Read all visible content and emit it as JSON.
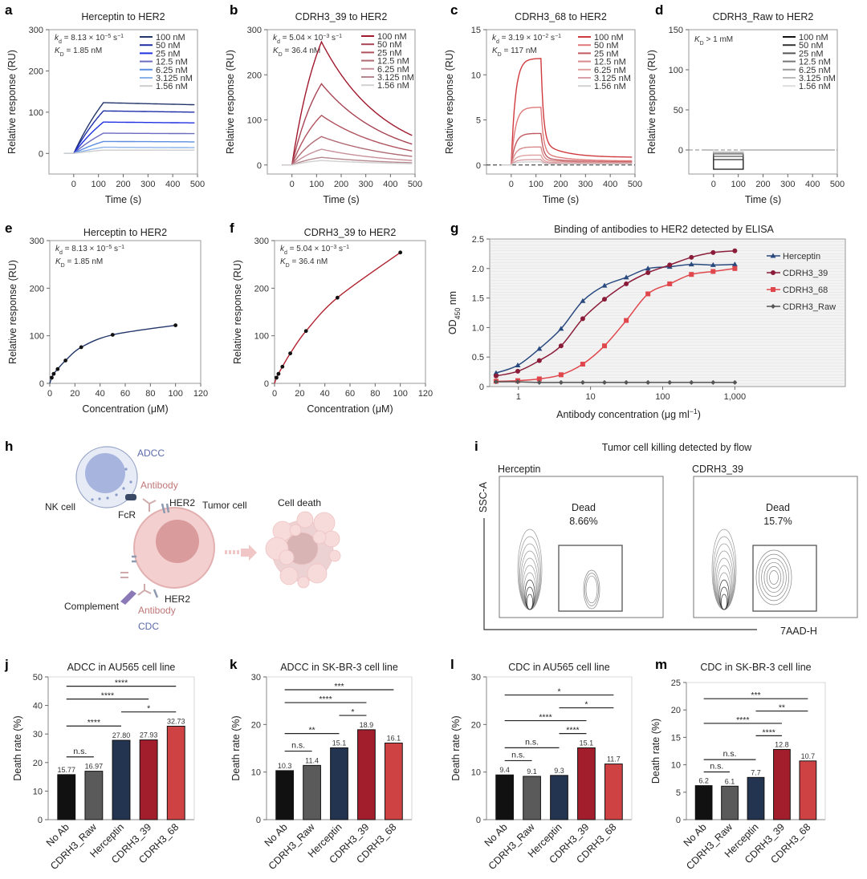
{
  "panel_labels": [
    "a",
    "b",
    "c",
    "d",
    "e",
    "f",
    "g",
    "h",
    "i",
    "j",
    "k",
    "l",
    "m"
  ],
  "chart_data": [
    {
      "panel": "a",
      "type": "line",
      "title": "Herceptin to HER2",
      "xlabel": "Time (s)",
      "ylabel": "Relative response (RU)",
      "xlim": [
        -100,
        500
      ],
      "ylim": [
        -50,
        300
      ],
      "xticks": [
        0,
        100,
        200,
        300,
        400,
        500
      ],
      "yticks": [
        0,
        100,
        200,
        300
      ],
      "injection_end_s": 120,
      "annotation": [
        [
          [
            "k",
            "i"
          ],
          [
            "d",
            "sub"
          ],
          [
            " = 8.13 × 10",
            ""
          ],
          [
            "−5",
            "sup"
          ],
          [
            " s",
            ""
          ],
          [
            "−1",
            "sup"
          ]
        ],
        [
          [
            "K",
            "i"
          ],
          [
            "D",
            "sub"
          ],
          [
            " = 1.85 nM",
            ""
          ]
        ]
      ],
      "series": [
        {
          "name": "100 nM",
          "color": "#22366a",
          "association_end": 123,
          "final": 118
        },
        {
          "name": "50 nM",
          "color": "#1f2fa8",
          "association_end": 103,
          "final": 100
        },
        {
          "name": "25 nM",
          "color": "#2130e0",
          "association_end": 76,
          "final": 74
        },
        {
          "name": "12.5 nM",
          "color": "#6b6bc0",
          "association_end": 49,
          "final": 48
        },
        {
          "name": "6.25 nM",
          "color": "#5b8de0",
          "association_end": 29,
          "final": 28
        },
        {
          "name": "3.125 nM",
          "color": "#8ab3ec",
          "association_end": 15,
          "final": 14
        },
        {
          "name": "1.56 nM",
          "color": "#cccccc",
          "association_end": 8,
          "final": 8
        }
      ]
    },
    {
      "panel": "b",
      "type": "line",
      "title": "CDRH3_39 to HER2",
      "xlabel": "Time (s)",
      "ylabel": "Relative response (RU)",
      "xlim": [
        -100,
        500
      ],
      "ylim": [
        -20,
        300
      ],
      "xticks": [
        0,
        100,
        200,
        300,
        400,
        500
      ],
      "yticks": [
        0,
        100,
        200,
        300
      ],
      "injection_end_s": 120,
      "annotation": [
        [
          [
            "k",
            "i"
          ],
          [
            "d",
            "sub"
          ],
          [
            " = 5.04 × 10",
            ""
          ],
          [
            "−3",
            "sup"
          ],
          [
            " s",
            ""
          ],
          [
            "−1",
            "sup"
          ]
        ],
        [
          [
            "K",
            "i"
          ],
          [
            "D",
            "sub"
          ],
          [
            " = 36.4 nM",
            ""
          ]
        ]
      ],
      "series": [
        {
          "name": "100 nM",
          "color": "#a0192d",
          "association_end": 273,
          "final": 65
        },
        {
          "name": "50 nM",
          "color": "#a84555",
          "association_end": 180,
          "final": 46
        },
        {
          "name": "25 nM",
          "color": "#b0525e",
          "association_end": 110,
          "final": 31
        },
        {
          "name": "12.5 nM",
          "color": "#b06a74",
          "association_end": 63,
          "final": 19
        },
        {
          "name": "6.25 nM",
          "color": "#c8909a",
          "association_end": 35,
          "final": 10
        },
        {
          "name": "3.125 nM",
          "color": "#b58890",
          "association_end": 17,
          "final": 5
        },
        {
          "name": "1.56 nM",
          "color": "#d0d0d0",
          "association_end": 10,
          "final": 3
        }
      ]
    },
    {
      "panel": "c",
      "type": "line",
      "title": "CDRH3_68 to HER2",
      "xlabel": "Time (s)",
      "ylabel": "Relative response (RU)",
      "xlim": [
        -100,
        500
      ],
      "ylim": [
        -1,
        15
      ],
      "xticks": [
        0,
        100,
        200,
        300,
        400,
        500
      ],
      "yticks": [
        0,
        5,
        10,
        15
      ],
      "injection_end_s": 120,
      "annotation": [
        [
          [
            "k",
            "i"
          ],
          [
            "d",
            "sub"
          ],
          [
            " = 3.19 × 10",
            ""
          ],
          [
            "−2",
            "sup"
          ],
          [
            " s",
            ""
          ],
          [
            "−1",
            "sup"
          ]
        ],
        [
          [
            "K",
            "i"
          ],
          [
            "D",
            "sub"
          ],
          [
            " = 117 nM",
            ""
          ]
        ]
      ],
      "series": [
        {
          "name": "100 nM",
          "color": "#d03a3f",
          "association_end": 11.8,
          "final": 0.85
        },
        {
          "name": "50 nM",
          "color": "#e07a7a",
          "association_end": 6.4,
          "final": 0.45
        },
        {
          "name": "25 nM",
          "color": "#c05a60",
          "association_end": 3.5,
          "final": 0.35
        },
        {
          "name": "12.5 nM",
          "color": "#d88a8a",
          "association_end": 2.0,
          "final": 0.3
        },
        {
          "name": "6.25 nM",
          "color": "#e0a0a0",
          "association_end": 1.1,
          "final": 0.2
        },
        {
          "name": "3.125 nM",
          "color": "#d8a0a8",
          "association_end": 0.6,
          "final": 0.15
        },
        {
          "name": "1.56 nM",
          "color": "#d0d0d0",
          "association_end": 0.35,
          "final": 0.1
        }
      ]
    },
    {
      "panel": "d",
      "type": "line",
      "title": "CDRH3_Raw to HER2",
      "xlabel": "Time (s)",
      "ylabel": "Relative response (RU)",
      "xlim": [
        -100,
        500
      ],
      "ylim": [
        -30,
        150
      ],
      "xticks": [
        0,
        100,
        200,
        300,
        400,
        500
      ],
      "yticks": [
        0,
        50,
        100,
        150
      ],
      "injection_end_s": 120,
      "annotation": [
        [
          [
            "K",
            "i"
          ],
          [
            "D",
            "sub"
          ],
          [
            " > 1 mM",
            ""
          ]
        ]
      ],
      "series": [
        {
          "name": "100 nM",
          "color": "#111111",
          "association_end": -24,
          "final": 0
        },
        {
          "name": "50 nM",
          "color": "#333333",
          "association_end": -12,
          "final": 0
        },
        {
          "name": "25 nM",
          "color": "#555555",
          "association_end": -8,
          "final": 0
        },
        {
          "name": "12.5 nM",
          "color": "#777777",
          "association_end": -5,
          "final": 0
        },
        {
          "name": "6.25 nM",
          "color": "#999999",
          "association_end": -4,
          "final": 0
        },
        {
          "name": "3.125 nM",
          "color": "#bbbbbb",
          "association_end": -3,
          "final": 0
        },
        {
          "name": "1.56 nM",
          "color": "#dddddd",
          "association_end": -2,
          "final": 0
        }
      ]
    },
    {
      "panel": "e",
      "type": "scatter",
      "title": "Herceptin to HER2",
      "xlabel": "Concentration (μM)",
      "ylabel": "Relative response (RU)",
      "xlim": [
        0,
        120
      ],
      "ylim": [
        0,
        300
      ],
      "xticks": [
        0,
        20,
        40,
        60,
        80,
        100,
        120
      ],
      "yticks": [
        0,
        100,
        200,
        300
      ],
      "annotation": [
        [
          [
            "k",
            "i"
          ],
          [
            "d",
            "sub"
          ],
          [
            " = 8.13 × 10",
            ""
          ],
          [
            "−5",
            "sup"
          ],
          [
            " s",
            ""
          ],
          [
            "−1",
            "sup"
          ]
        ],
        [
          [
            "K",
            "i"
          ],
          [
            "D",
            "sub"
          ],
          [
            " = 1.85 nM",
            ""
          ]
        ]
      ],
      "x": [
        1.56,
        3.125,
        6.25,
        12.5,
        25,
        50,
        100
      ],
      "y": [
        12,
        20,
        30,
        48,
        76,
        102,
        122
      ],
      "color": "#22366a"
    },
    {
      "panel": "f",
      "type": "scatter",
      "title": "CDRH3_39 to HER2",
      "xlabel": "Concentration (μM)",
      "ylabel": "Relative response (RU)",
      "xlim": [
        0,
        120
      ],
      "ylim": [
        0,
        300
      ],
      "xticks": [
        0,
        20,
        40,
        60,
        80,
        100,
        120
      ],
      "yticks": [
        0,
        100,
        200,
        300
      ],
      "annotation": [
        [
          [
            "k",
            "i"
          ],
          [
            "d",
            "sub"
          ],
          [
            " = 5.04 × 10",
            ""
          ],
          [
            "−3",
            "sup"
          ],
          [
            " s",
            ""
          ],
          [
            "−1",
            "sup"
          ]
        ],
        [
          [
            "K",
            "i"
          ],
          [
            "D",
            "sub"
          ],
          [
            " = 36.4 nM",
            ""
          ]
        ]
      ],
      "x": [
        1.56,
        3.125,
        6.25,
        12.5,
        25,
        50,
        100
      ],
      "y": [
        12,
        20,
        35,
        63,
        110,
        180,
        275
      ],
      "color": "#b0202e"
    },
    {
      "panel": "g",
      "type": "line",
      "title": "Binding of antibodies to HER2 detected by ELISA",
      "xlabel": [
        [
          "Antibody concentration (μg ml",
          ""
        ],
        [
          "−1",
          "sup"
        ],
        [
          ")",
          ""
        ]
      ],
      "ylabel": [
        [
          "OD",
          ""
        ],
        [
          "450",
          "sub"
        ],
        [
          " nm",
          ""
        ]
      ],
      "xscale": "log",
      "xlim": [
        0.4,
        34000
      ],
      "ylim": [
        0,
        2.5
      ],
      "xticks": [
        1,
        10,
        100,
        1000
      ],
      "xtick_labels": [
        "1",
        "10",
        "100",
        "1,000"
      ],
      "yticks": [
        0,
        0.5,
        1,
        1.5,
        2,
        2.5
      ],
      "ytick_labels": [
        "0",
        "0.5",
        "1.0",
        "1.5",
        "2.0",
        "2.5"
      ],
      "grid": true,
      "legend": "right",
      "x": [
        0.49,
        0.98,
        1.95,
        3.9,
        7.8,
        15.6,
        31.25,
        62.5,
        125,
        250,
        500,
        1000
      ],
      "series": [
        {
          "name": "Herceptin",
          "color": "#2a4a7f",
          "marker": "triangle",
          "values": [
            0.23,
            0.36,
            0.64,
            0.98,
            1.45,
            1.71,
            1.85,
            2.0,
            2.03,
            2.07,
            2.06,
            2.07
          ]
        },
        {
          "name": "CDRH3_39",
          "color": "#8a1c3a",
          "marker": "circle",
          "values": [
            0.18,
            0.26,
            0.44,
            0.69,
            1.15,
            1.48,
            1.74,
            1.93,
            2.06,
            2.19,
            2.27,
            2.3
          ]
        },
        {
          "name": "CDRH3_68",
          "color": "#e0474c",
          "marker": "square",
          "values": [
            0.09,
            0.1,
            0.13,
            0.2,
            0.38,
            0.69,
            1.12,
            1.57,
            1.74,
            1.9,
            1.95,
            2.0
          ]
        },
        {
          "name": "CDRH3_Raw",
          "color": "#555555",
          "marker": "diamond",
          "values": [
            0.08,
            0.08,
            0.07,
            0.07,
            0.07,
            0.07,
            0.07,
            0.07,
            0.07,
            0.07,
            0.07,
            0.07
          ]
        }
      ]
    },
    {
      "panel": "j",
      "type": "bar",
      "title": "ADCC in AU565 cell line",
      "ylabel": "Death rate (%)",
      "categories": [
        "No Ab",
        "CDRH3_Raw",
        "Herceptin",
        "CDRH3_39",
        "CDRH3_68"
      ],
      "values": [
        15.77,
        16.97,
        27.8,
        27.93,
        32.73
      ],
      "value_labels": [
        "15.77",
        "16.97",
        "27.80",
        "27.93",
        "32.73"
      ],
      "colors": [
        "#111111",
        "#5a5a5a",
        "#22344f",
        "#a31e2c",
        "#cf4244"
      ],
      "ylim": [
        0,
        50
      ],
      "yticks": [
        0,
        10,
        20,
        30,
        40,
        50
      ],
      "significance": [
        {
          "from": 0,
          "to": 1,
          "label": "n.s."
        },
        {
          "from": 0,
          "to": 2,
          "label": "****"
        },
        {
          "from": 2,
          "to": 4,
          "label": "*"
        },
        {
          "from": 0,
          "to": 3,
          "label": "****"
        },
        {
          "from": 0,
          "to": 4,
          "label": "****"
        }
      ]
    },
    {
      "panel": "k",
      "type": "bar",
      "title": "ADCC in SK-BR-3 cell line",
      "ylabel": "Death rate (%)",
      "categories": [
        "No Ab",
        "CDRH3_Raw",
        "Herceptin",
        "CDRH3_39",
        "CDRH3_68"
      ],
      "values": [
        10.3,
        11.4,
        15.1,
        18.9,
        16.1
      ],
      "value_labels": [
        "10.3",
        "11.4",
        "15.1",
        "18.9",
        "16.1"
      ],
      "colors": [
        "#111111",
        "#5a5a5a",
        "#22344f",
        "#a31e2c",
        "#cf4244"
      ],
      "ylim": [
        0,
        30
      ],
      "yticks": [
        0,
        10,
        20,
        30
      ],
      "significance": [
        {
          "from": 0,
          "to": 1,
          "label": "n.s."
        },
        {
          "from": 0,
          "to": 2,
          "label": "**"
        },
        {
          "from": 2,
          "to": 3,
          "label": "*"
        },
        {
          "from": 0,
          "to": 3,
          "label": "****"
        },
        {
          "from": 0,
          "to": 4,
          "label": "***"
        }
      ]
    },
    {
      "panel": "l",
      "type": "bar",
      "title": "CDC in AU565 cell line",
      "ylabel": "Death rate (%)",
      "categories": [
        "No Ab",
        "CDRH3_Raw",
        "Herceptin",
        "CDRH3_39",
        "CDRH3_68"
      ],
      "values": [
        9.4,
        9.1,
        9.3,
        15.1,
        11.7
      ],
      "value_labels": [
        "9.4",
        "9.1",
        "9.3",
        "15.1",
        "11.7"
      ],
      "colors": [
        "#111111",
        "#5a5a5a",
        "#22344f",
        "#a31e2c",
        "#cf4244"
      ],
      "ylim": [
        0,
        30
      ],
      "yticks": [
        0,
        10,
        20,
        30
      ],
      "significance": [
        {
          "from": 0,
          "to": 1,
          "label": "n.s."
        },
        {
          "from": 0,
          "to": 2,
          "label": "n.s."
        },
        {
          "from": 2,
          "to": 3,
          "label": "****"
        },
        {
          "from": 0,
          "to": 3,
          "label": "****"
        },
        {
          "from": 2,
          "to": 4,
          "label": "*"
        },
        {
          "from": 0,
          "to": 4,
          "label": "*"
        }
      ]
    },
    {
      "panel": "m",
      "type": "bar",
      "title": "CDC in SK-BR-3 cell line",
      "ylabel": "Death rate (%)",
      "categories": [
        "No Ab",
        "CDRH3_Raw",
        "Herceptin",
        "CDRH3_39",
        "CDRH3_68"
      ],
      "values": [
        6.2,
        6.1,
        7.7,
        12.8,
        10.7
      ],
      "value_labels": [
        "6.2",
        "6.1",
        "7.7",
        "12.8",
        "10.7"
      ],
      "colors": [
        "#111111",
        "#5a5a5a",
        "#22344f",
        "#a31e2c",
        "#cf4244"
      ],
      "ylim": [
        0,
        25
      ],
      "yticks": [
        0,
        5,
        10,
        15,
        20,
        25
      ],
      "significance": [
        {
          "from": 0,
          "to": 1,
          "label": "n.s."
        },
        {
          "from": 0,
          "to": 2,
          "label": "n.s."
        },
        {
          "from": 2,
          "to": 3,
          "label": "****"
        },
        {
          "from": 0,
          "to": 3,
          "label": "****"
        },
        {
          "from": 2,
          "to": 4,
          "label": "**"
        },
        {
          "from": 0,
          "to": 4,
          "label": "***"
        }
      ]
    }
  ],
  "diagram_h": {
    "labels": {
      "adcc": "ADCC",
      "antibody_top": "Antibody",
      "nk_cell": "NK cell",
      "fcr": "FcR",
      "her2_top": "HER2",
      "tumor_cell": "Tumor cell",
      "cell_death": "Cell death",
      "complement": "Complement",
      "her2_bottom": "HER2",
      "antibody_bottom": "Antibody",
      "cdc": "CDC"
    },
    "colors": {
      "mechanism": "#5a6aa8",
      "antibody": "#c07878"
    }
  },
  "flow_i": {
    "title": "Tumor cell killing detected by flow",
    "y_axis": "SSC-A",
    "x_axis": "7AAD-H",
    "plots": [
      {
        "sample": "Herceptin",
        "gate": "Dead",
        "percent": "8.66%"
      },
      {
        "sample": "CDRH3_39",
        "gate": "Dead",
        "percent": "15.7%"
      }
    ]
  }
}
